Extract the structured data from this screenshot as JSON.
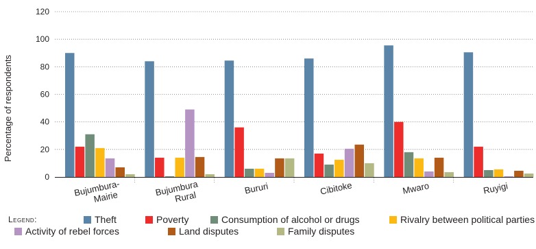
{
  "chart_data": {
    "type": "bar",
    "title": "",
    "xlabel": "",
    "ylabel": "Percentage of respondents",
    "ylim": [
      0,
      120
    ],
    "yticks": [
      0,
      20,
      40,
      60,
      80,
      100,
      120
    ],
    "grid": "horizontal-dotted",
    "legend_position": "bottom",
    "legend_title": "Legend:",
    "categories": [
      "Bujumbura-\nMairie",
      "Bujumbura\nRural",
      "Bururi",
      "Cibitoke",
      "Mwaro",
      "Ruyigi"
    ],
    "series": [
      {
        "name": "Theft",
        "color": "#5b85a8",
        "values": [
          90,
          84,
          84.5,
          86,
          95.5,
          90.5
        ]
      },
      {
        "name": "Poverty",
        "color": "#ed2c2c",
        "values": [
          22,
          14,
          36,
          17,
          40,
          22
        ]
      },
      {
        "name": "Consumption of alcohol or drugs",
        "color": "#6f8d79",
        "values": [
          31,
          0.5,
          6,
          9,
          18,
          5
        ]
      },
      {
        "name": "Rivalry between political parties",
        "color": "#fdb913",
        "values": [
          21,
          14,
          6,
          12.5,
          13.5,
          5.5
        ]
      },
      {
        "name": "Activity of rebel forces",
        "color": "#b594c4",
        "values": [
          13.5,
          49,
          3,
          20.5,
          4,
          0.5
        ]
      },
      {
        "name": "Land disputes",
        "color": "#b25a17",
        "values": [
          7,
          14.5,
          13.5,
          23.5,
          14,
          4.5
        ]
      },
      {
        "name": "Family disputes",
        "color": "#b4b883",
        "values": [
          2,
          2,
          13.5,
          10,
          3.5,
          2.5
        ]
      }
    ]
  }
}
